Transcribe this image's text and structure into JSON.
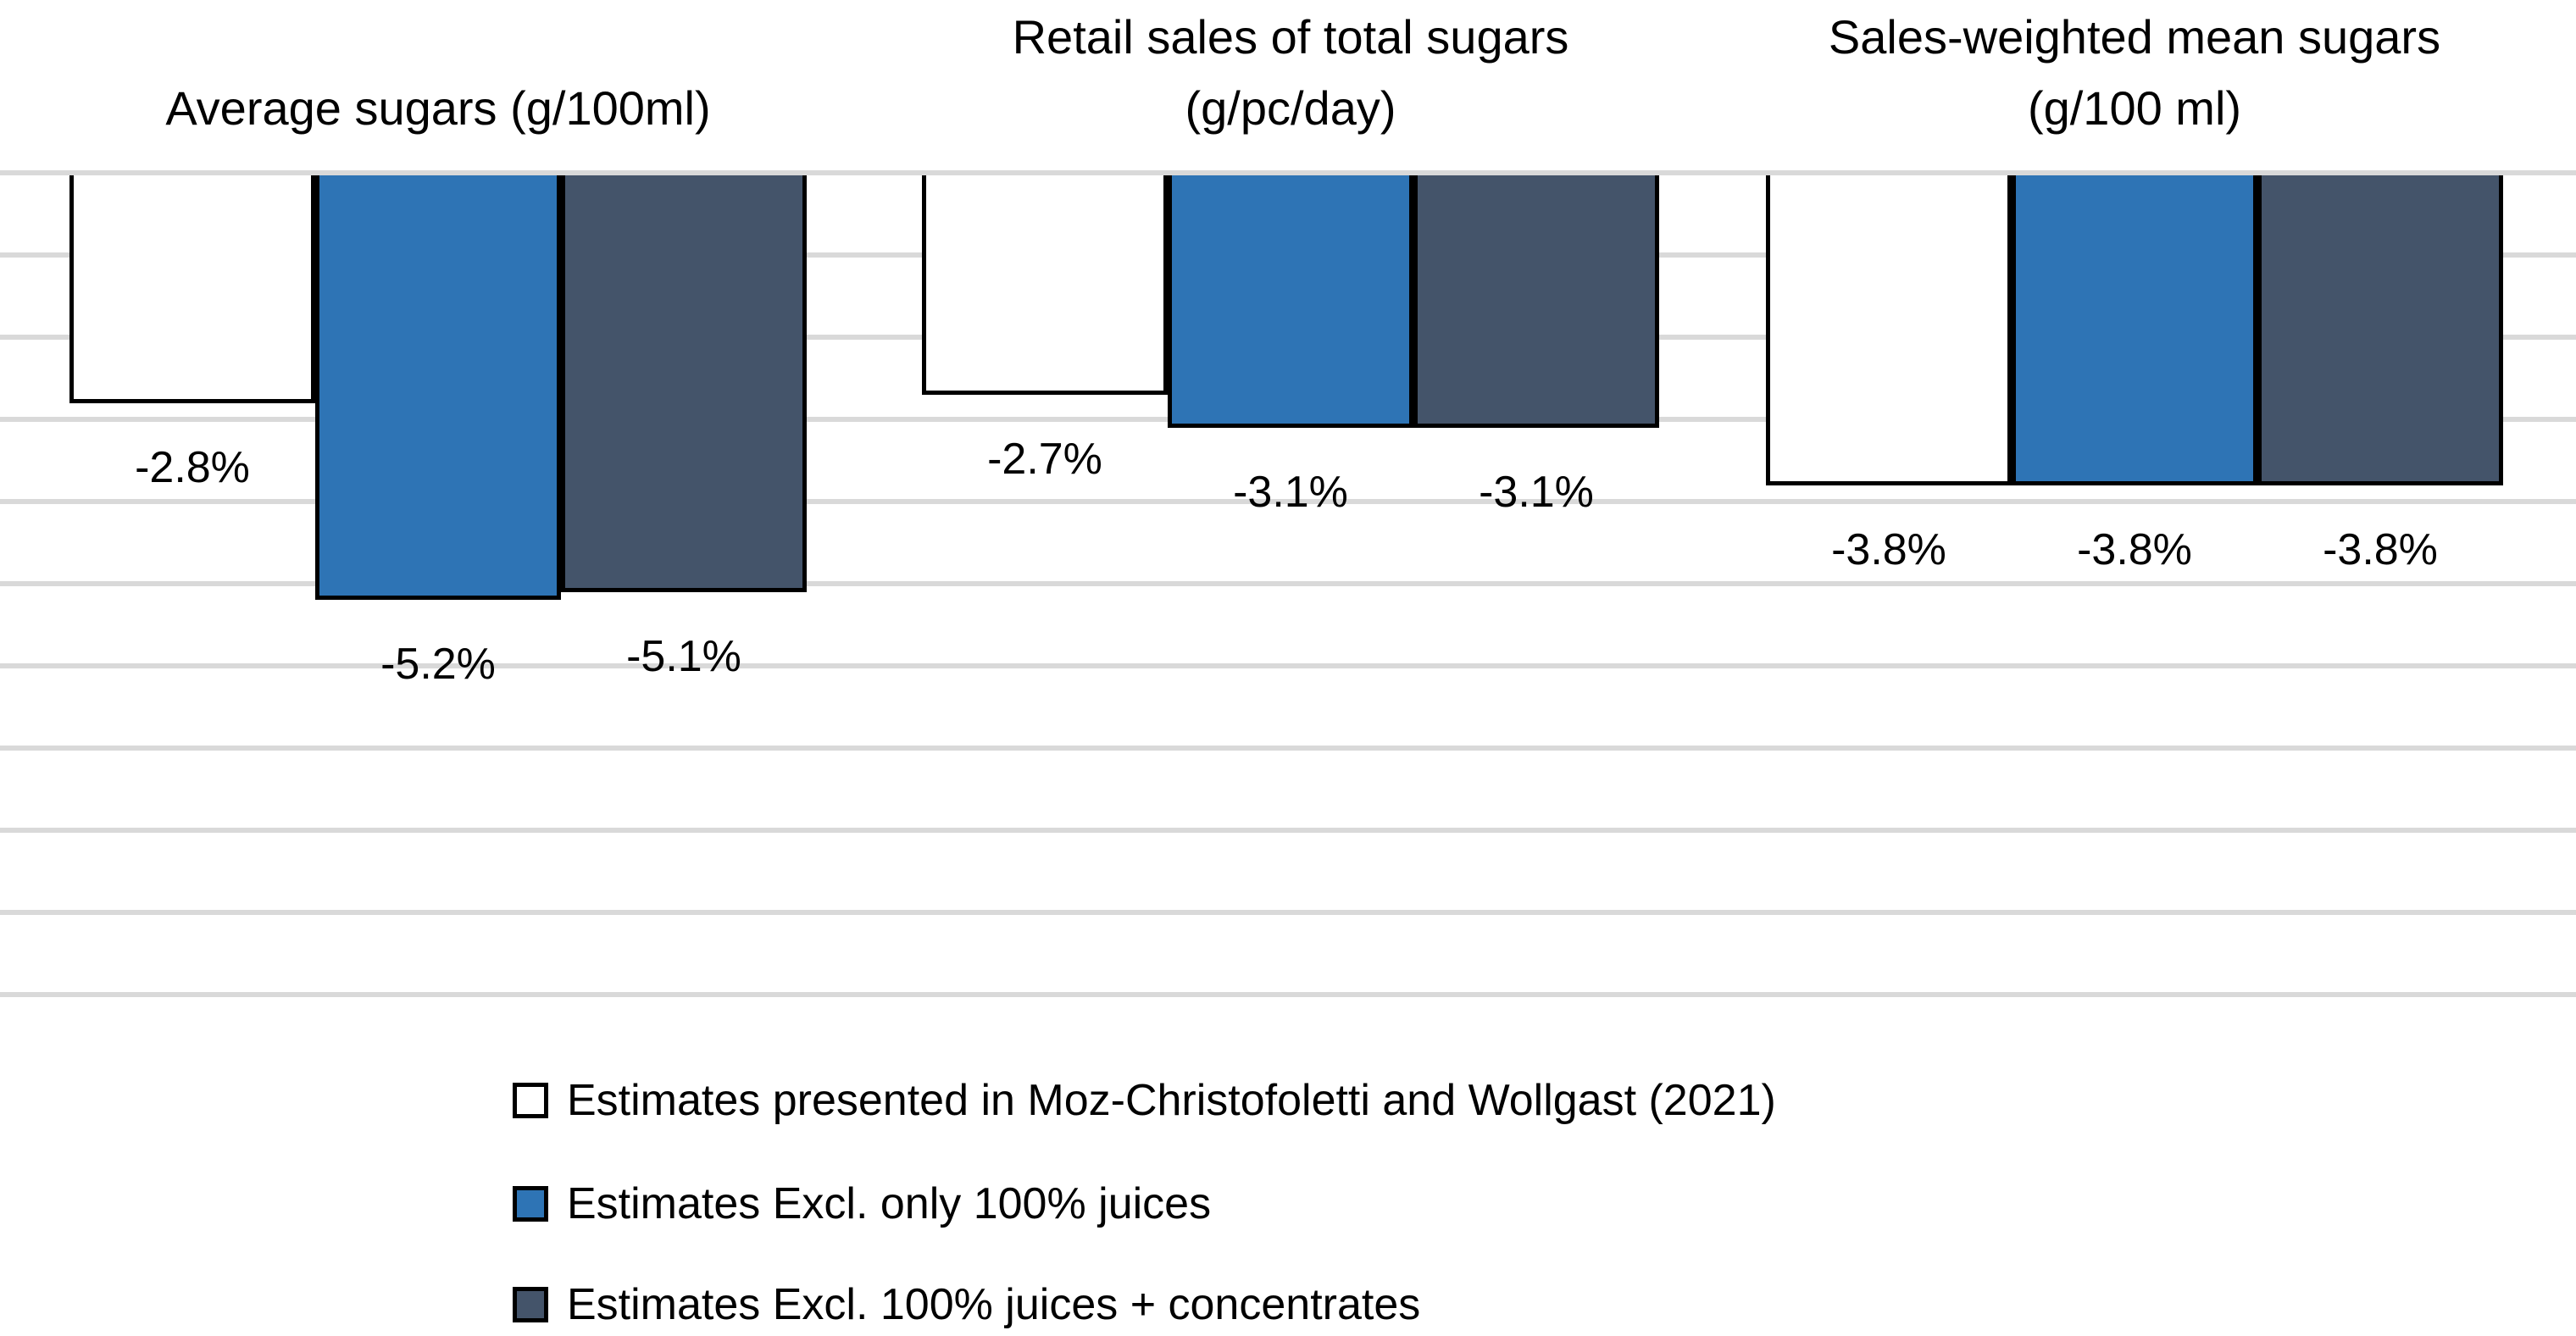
{
  "chart_data": {
    "type": "bar",
    "orientation": "vertical-negative",
    "title": "",
    "xlabel": "",
    "ylabel": "",
    "value_unit": "percent",
    "ylim": [
      -10,
      0
    ],
    "gridline_interval": 1,
    "grid": true,
    "grid_color": "#D9D9D9",
    "legend_position": "bottom-left",
    "categories": [
      "Average sugars (g/100ml)",
      "Retail sales of total sugars (g/pc/day)",
      "Sales-weighted mean sugars (g/100 ml)"
    ],
    "category_title_lines": [
      [
        "Average sugars (g/100ml)"
      ],
      [
        "Retail sales of total sugars",
        "(g/pc/day)"
      ],
      [
        "Sales-weighted mean sugars",
        "(g/100 ml)"
      ]
    ],
    "series": [
      {
        "name": "Estimates presented in Moz-Christofoletti and Wollgast (2021)",
        "color": "#FFFFFF",
        "border_color": "#000000",
        "values": [
          -2.8,
          -2.7,
          -3.8
        ]
      },
      {
        "name": "Estimates Excl. only 100% juices",
        "color": "#2E74B5",
        "border_color": "#000000",
        "values": [
          -5.2,
          -3.1,
          -3.8
        ]
      },
      {
        "name": "Estimates Excl. 100% juices + concentrates",
        "color": "#44546A",
        "border_color": "#000000",
        "values": [
          -5.1,
          -3.1,
          -3.8
        ]
      }
    ],
    "data_labels": [
      [
        "-2.8%",
        "-5.2%",
        "-5.1%"
      ],
      [
        "-2.7%",
        "-3.1%",
        "-3.1%"
      ],
      [
        "-3.8%",
        "-3.8%",
        "-3.8%"
      ]
    ]
  },
  "colors": {
    "background": "#FFFFFF",
    "gridline": "#D9D9D9",
    "bar_outline": "#000000",
    "series_1_fill": "#FFFFFF",
    "series_2_fill": "#2E74B5",
    "series_3_fill": "#44546A",
    "text": "#000000"
  }
}
